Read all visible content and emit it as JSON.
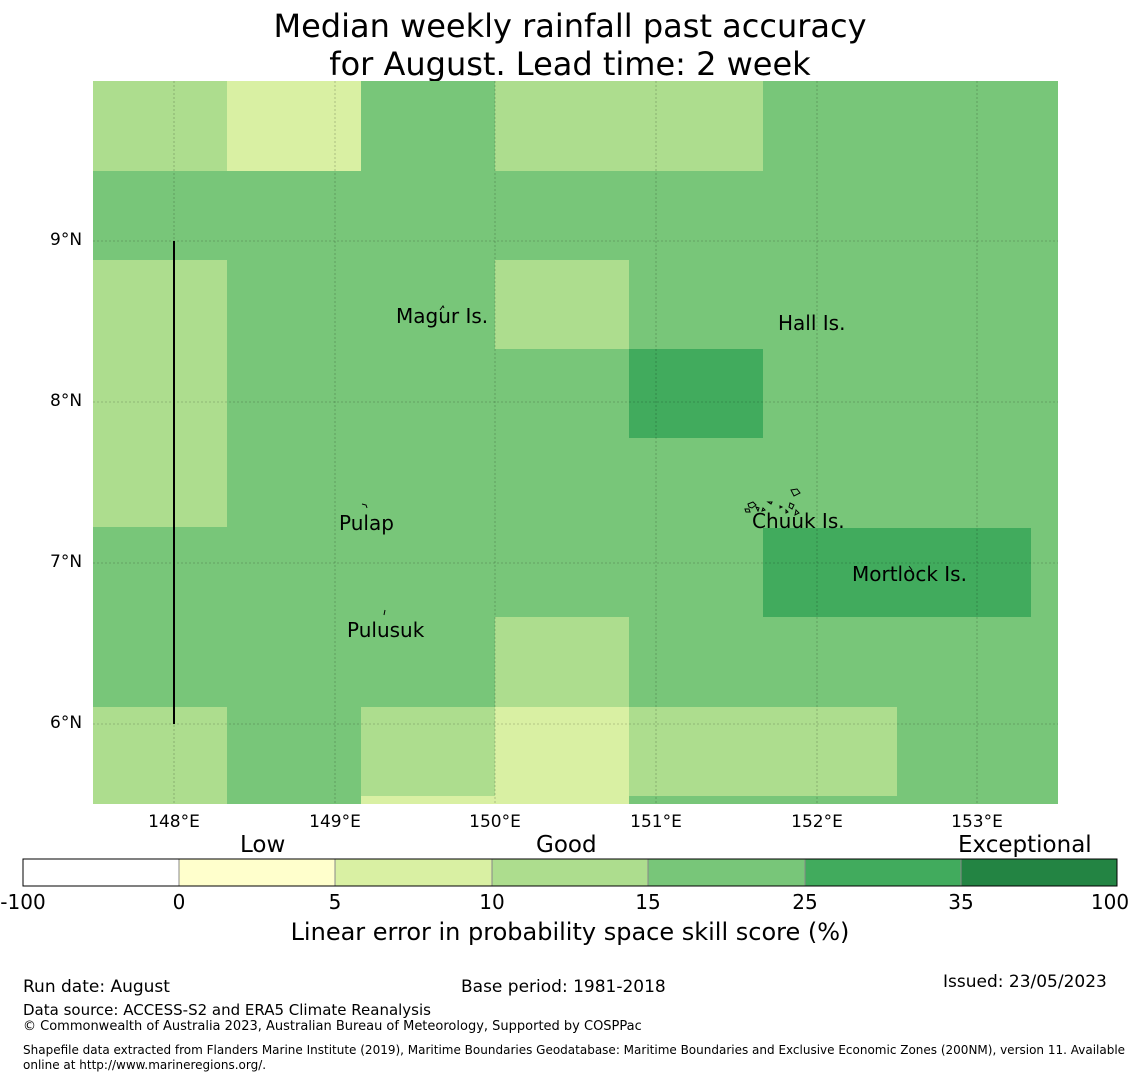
{
  "title": {
    "line1": "Median weekly rainfall past accuracy",
    "line2": "for August. Lead time: 2 week"
  },
  "map": {
    "lat_ticks": [
      "9°N",
      "8°N",
      "7°N",
      "6°N"
    ],
    "lon_ticks": [
      "148°E",
      "149°E",
      "150°E",
      "151°E",
      "152°E",
      "153°E"
    ],
    "places": [
      {
        "name": "Magur Is.",
        "key": "magur"
      },
      {
        "name": "Hall Is.",
        "key": "hall"
      },
      {
        "name": "Pulap",
        "key": "pulap"
      },
      {
        "name": "Chuuk Is.",
        "key": "chuuk"
      },
      {
        "name": "Mortlock Is.",
        "key": "mortlock"
      },
      {
        "name": "Pulusuk",
        "key": "pulusuk"
      }
    ]
  },
  "colorbar": {
    "categories": [
      "Low",
      "Good",
      "Exceptional"
    ],
    "ticks": [
      "-100",
      "0",
      "5",
      "10",
      "15",
      "25",
      "35",
      "100"
    ],
    "colors": [
      "#ffffff",
      "#ffffcc",
      "#d9f0a3",
      "#addd8e",
      "#78c679",
      "#41ab5d",
      "#238443"
    ],
    "label": "Linear error in probability space skill score (%)"
  },
  "footer": {
    "run_date": "Run date: August",
    "base_period": "Base period: 1981-2018",
    "issued": "Issued: 23/05/2023",
    "data_source": "Data source: ACCESS-S2 and ERA5 Climate Reanalysis",
    "copyright": "© Commonwealth of Australia 2023, Australian Bureau of Meteorology, Supported by COSPPac",
    "shapefile": "Shapefile data extracted from Flanders Marine Institute (2019), Maritime Boundaries Geodatabase: Maritime Boundaries and Exclusive Economic Zones (200NM), version 11. Available online at http://www.marineregions.org/."
  }
}
